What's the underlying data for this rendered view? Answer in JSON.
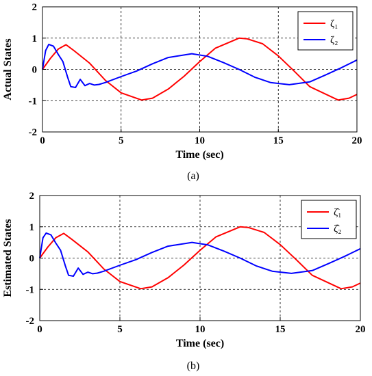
{
  "figure": {
    "captions": [
      "(a)",
      "(b)"
    ]
  },
  "colors": {
    "series1": "#ff0000",
    "series2": "#0000ff"
  },
  "chart_data": [
    {
      "type": "line",
      "caption": "(a)",
      "xlabel": "Time (sec)",
      "ylabel": "Actual States",
      "xlim": [
        0,
        20
      ],
      "ylim": [
        -2,
        2
      ],
      "xticks": [
        0,
        5,
        10,
        15,
        20
      ],
      "yticks": [
        -2,
        -1,
        0,
        1,
        2
      ],
      "grid": true,
      "legend_position": "top-right",
      "series": [
        {
          "name": "ζ₁",
          "color": "#ff0000",
          "x": [
            0,
            0.5,
            1.0,
            1.5,
            2.0,
            3.0,
            4.0,
            5.0,
            6.3,
            7.0,
            8.0,
            9.0,
            10.0,
            11.0,
            12.5,
            13.0,
            14.0,
            15.0,
            16.0,
            17.0,
            18.8,
            19.5,
            20.0
          ],
          "y": [
            0,
            0.35,
            0.65,
            0.79,
            0.6,
            0.2,
            -0.35,
            -0.75,
            -0.98,
            -0.92,
            -0.63,
            -0.22,
            0.25,
            0.68,
            1.0,
            0.98,
            0.82,
            0.43,
            -0.05,
            -0.55,
            -0.98,
            -0.92,
            -0.8
          ]
        },
        {
          "name": "ζ₂",
          "color": "#0000ff",
          "x": [
            0,
            0.2,
            0.4,
            0.7,
            1.0,
            1.3,
            1.6,
            1.8,
            2.1,
            2.4,
            2.7,
            3.0,
            3.3,
            3.6,
            4.0,
            5.0,
            6.0,
            7.0,
            8.0,
            9.5,
            10.5,
            11.5,
            12.5,
            13.5,
            14.5,
            15.7,
            17.0,
            18.0,
            19.0,
            20.0
          ],
          "y": [
            0,
            0.6,
            0.8,
            0.74,
            0.48,
            0.25,
            -0.25,
            -0.55,
            -0.58,
            -0.32,
            -0.52,
            -0.45,
            -0.5,
            -0.48,
            -0.42,
            -0.23,
            -0.05,
            0.18,
            0.38,
            0.5,
            0.42,
            0.22,
            0.0,
            -0.25,
            -0.42,
            -0.49,
            -0.4,
            -0.18,
            0.05,
            0.3
          ]
        }
      ]
    },
    {
      "type": "line",
      "caption": "(b)",
      "xlabel": "Time (sec)",
      "ylabel": "Estimated States",
      "xlim": [
        0,
        20
      ],
      "ylim": [
        -2,
        2
      ],
      "xticks": [
        0,
        5,
        10,
        15,
        20
      ],
      "yticks": [
        -2,
        -1,
        0,
        1,
        2
      ],
      "grid": true,
      "legend_position": "top-right",
      "series": [
        {
          "name": "ζ̂₁",
          "color": "#ff0000",
          "x": [
            0,
            0.5,
            1.0,
            1.5,
            2.0,
            3.0,
            4.0,
            5.0,
            6.3,
            7.0,
            8.0,
            9.0,
            10.0,
            11.0,
            12.5,
            13.0,
            14.0,
            15.0,
            16.0,
            17.0,
            18.8,
            19.5,
            20.0
          ],
          "y": [
            0,
            0.35,
            0.65,
            0.79,
            0.6,
            0.2,
            -0.35,
            -0.75,
            -0.98,
            -0.92,
            -0.63,
            -0.22,
            0.25,
            0.68,
            1.0,
            0.98,
            0.82,
            0.43,
            -0.05,
            -0.55,
            -0.98,
            -0.92,
            -0.8
          ]
        },
        {
          "name": "ζ̂₂",
          "color": "#0000ff",
          "x": [
            0,
            0.2,
            0.4,
            0.7,
            1.0,
            1.3,
            1.6,
            1.8,
            2.1,
            2.4,
            2.7,
            3.0,
            3.3,
            3.6,
            4.0,
            5.0,
            6.0,
            7.0,
            8.0,
            9.5,
            10.5,
            11.5,
            12.5,
            13.5,
            14.5,
            15.7,
            17.0,
            18.0,
            19.0,
            20.0
          ],
          "y": [
            0,
            0.65,
            0.8,
            0.74,
            0.48,
            0.25,
            -0.25,
            -0.55,
            -0.58,
            -0.32,
            -0.52,
            -0.45,
            -0.5,
            -0.48,
            -0.42,
            -0.23,
            -0.05,
            0.18,
            0.38,
            0.5,
            0.42,
            0.22,
            0.0,
            -0.25,
            -0.42,
            -0.49,
            -0.4,
            -0.18,
            0.05,
            0.3
          ]
        }
      ]
    }
  ]
}
